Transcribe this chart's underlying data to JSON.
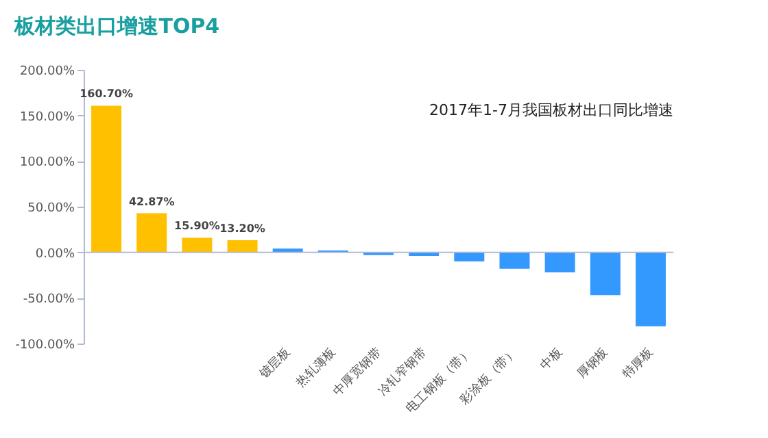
{
  "chart_data": {
    "type": "bar",
    "title": "板材类出口增速TOP4",
    "annotations": [
      "2017年1-7月我国板材出口同比增速"
    ],
    "categories": [
      null,
      null,
      null,
      null,
      "镀层板",
      "热轧薄板",
      "中厚宽钢带",
      "冷轧窄钢带",
      "电工钢板（带）",
      "彩涂板（带）",
      "中板",
      "厚钢板",
      "特厚板"
    ],
    "values": [
      160.7,
      42.87,
      15.9,
      13.2,
      4,
      2,
      -3,
      -4,
      -10,
      -18,
      -22,
      -47,
      -81
    ],
    "colors": [
      "#ffc000",
      "#ffc000",
      "#ffc000",
      "#ffc000",
      "#3399ff",
      "#3399ff",
      "#3399ff",
      "#3399ff",
      "#3399ff",
      "#3399ff",
      "#3399ff",
      "#3399ff",
      "#3399ff"
    ],
    "value_labels": [
      "160.70%",
      "42.87%",
      "15.90%",
      "13.20%",
      null,
      null,
      null,
      null,
      null,
      null,
      null,
      null,
      null
    ],
    "ylim": [
      -100,
      200
    ],
    "yticks": [
      {
        "value": -100,
        "label": "-100.00%"
      },
      {
        "value": -50,
        "label": "-50.00%"
      },
      {
        "value": 0,
        "label": "0.00%"
      },
      {
        "value": 50,
        "label": "50.00%"
      },
      {
        "value": 100,
        "label": "100.00%"
      },
      {
        "value": 150,
        "label": "150.00%"
      },
      {
        "value": 200,
        "label": "200.00%"
      }
    ],
    "ref_lines": [
      {
        "axis": "y",
        "value": 0,
        "color": "#b0b8d8"
      }
    ],
    "grid": false,
    "legend": false
  }
}
